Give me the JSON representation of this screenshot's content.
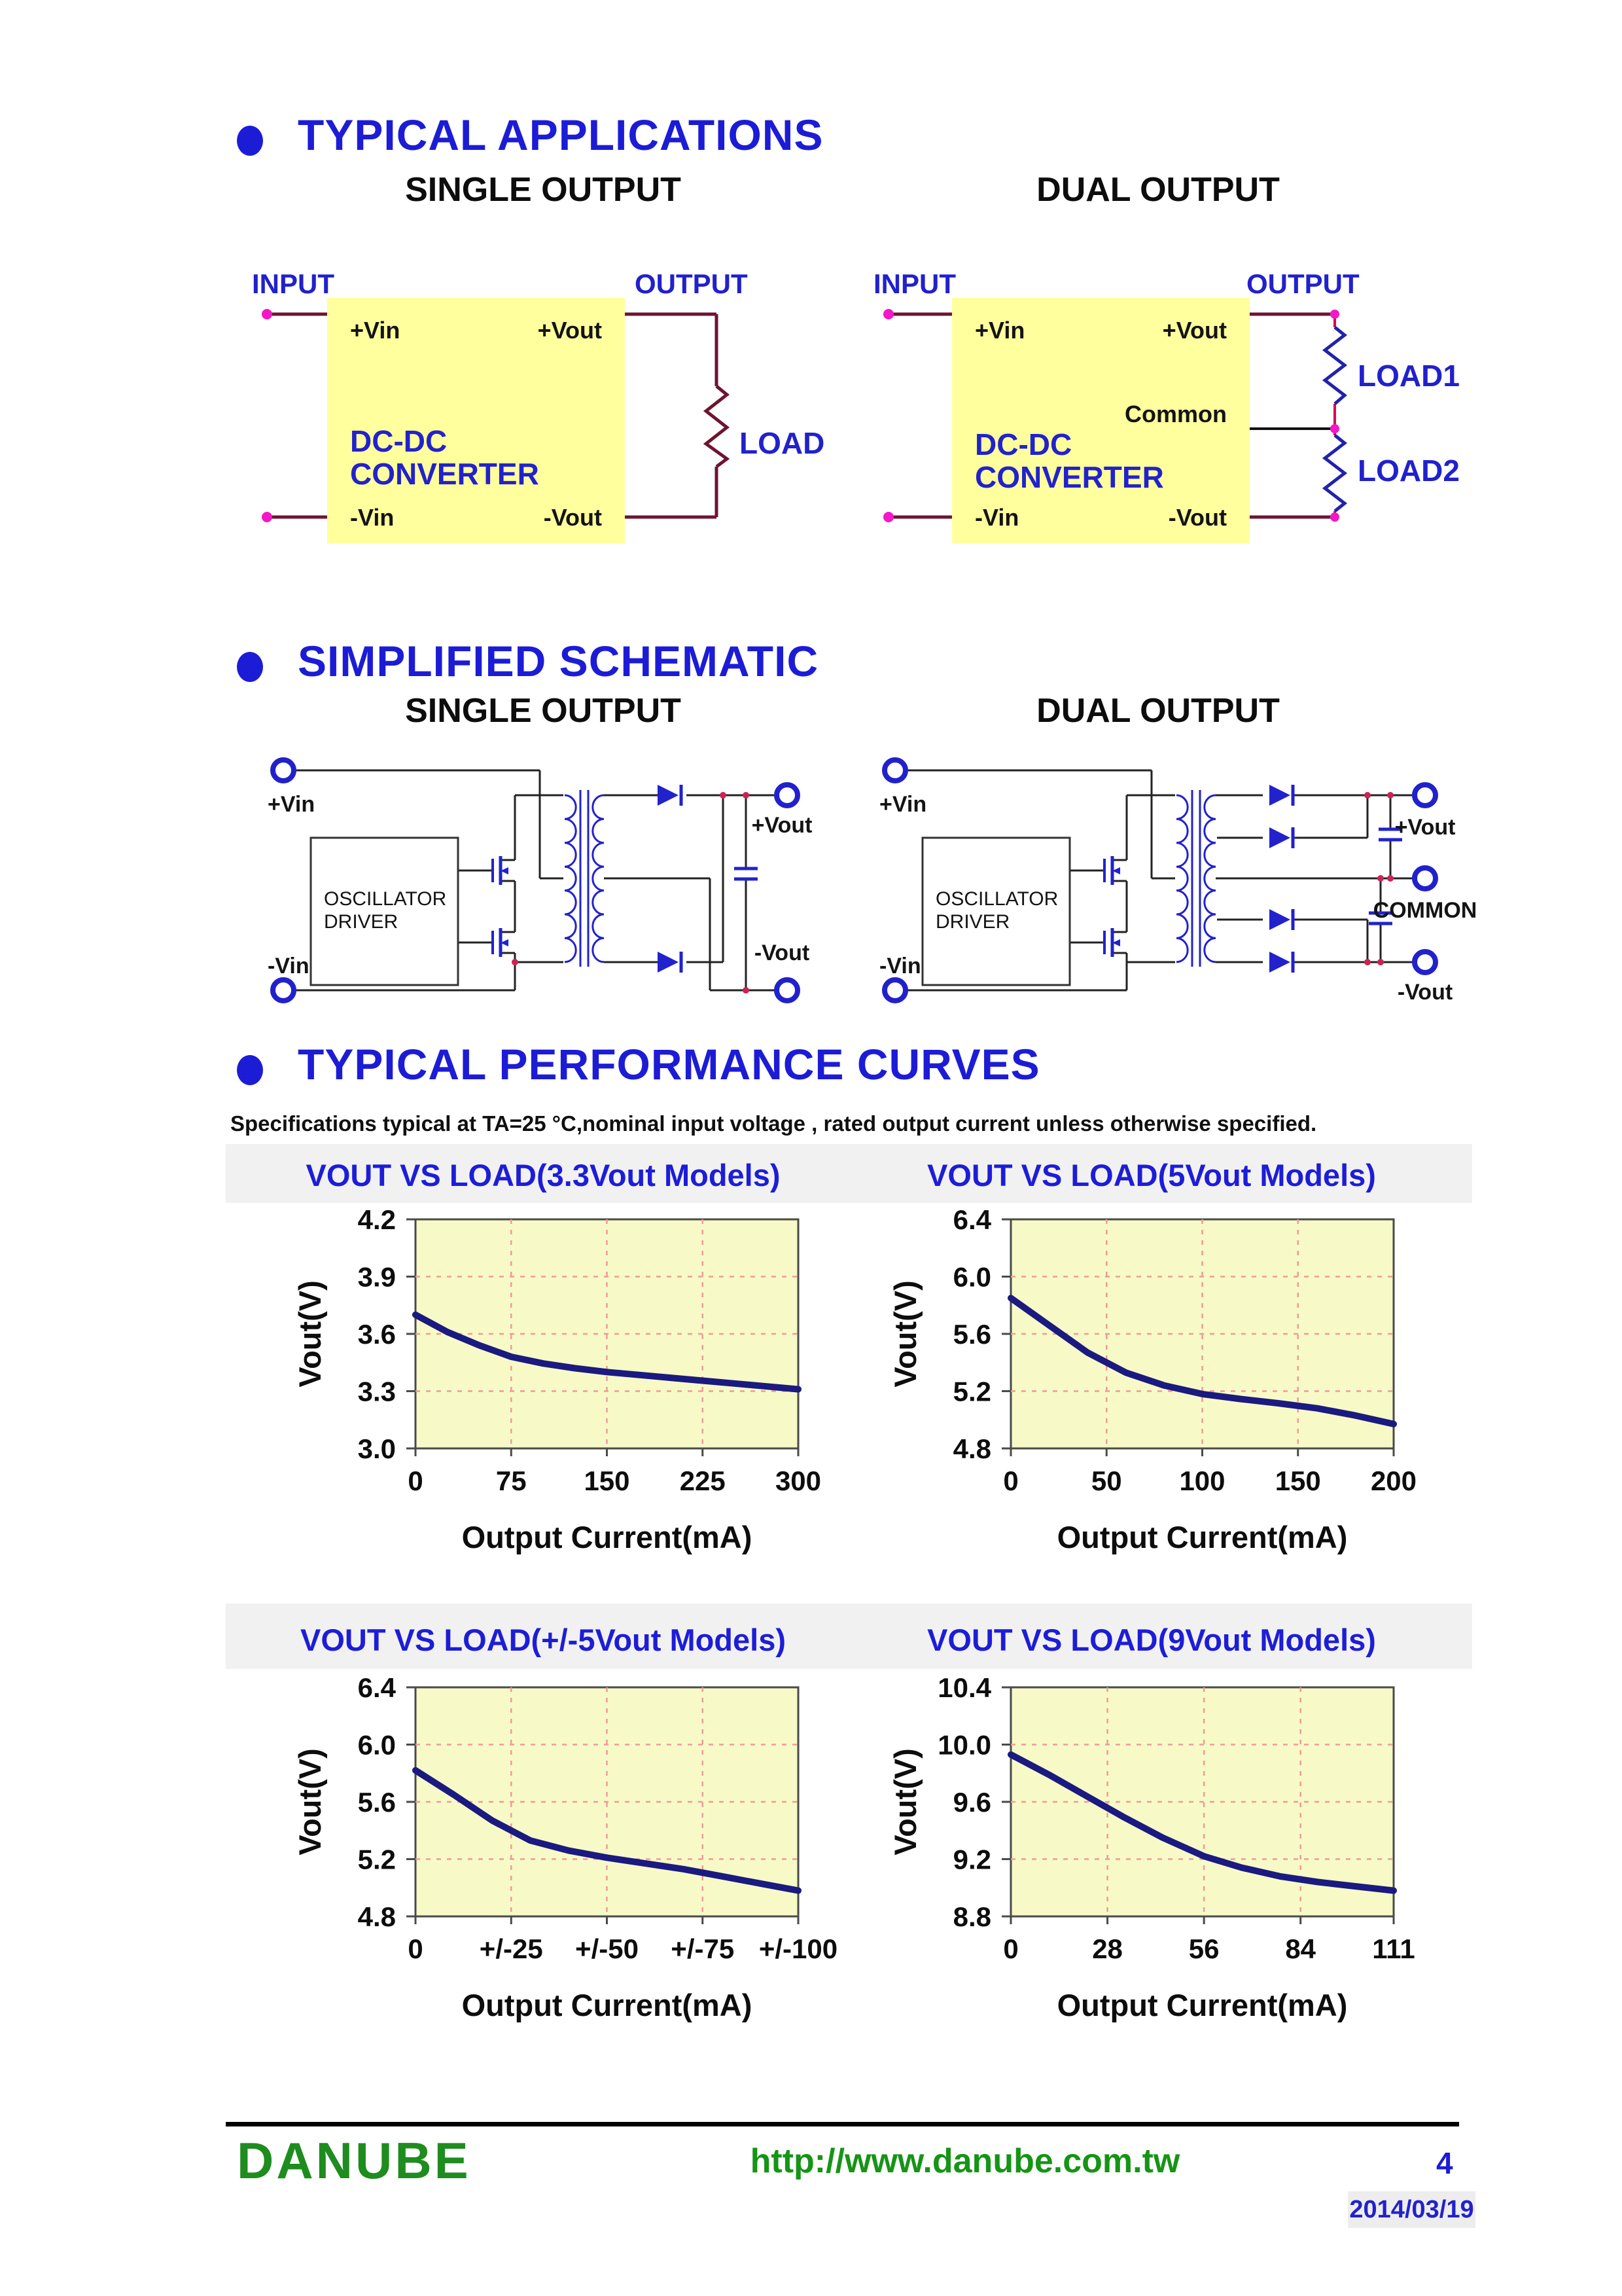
{
  "colors": {
    "heading_blue": "#1c1cd6",
    "label_blue": "#2121cc",
    "text_black": "#111111",
    "converter_box_yellow": "#ffff9e",
    "wire_dark_red": "#6e1430",
    "load_rail_red": "#d01050",
    "magenta_dot": "#f218c8",
    "component_blue": "#2222cc",
    "brand_green": "#1e8c1e",
    "url_green": "#169416",
    "date_blue": "#2222cc",
    "band_gray": "#f1f1f1"
  },
  "chart_style": {
    "plot_bg": "#f7fac6",
    "grid": "#ef9a9a",
    "frame": "#4a4a4a",
    "line": "#1a1a80"
  },
  "sections": {
    "applications": {
      "title": "TYPICAL APPLICATIONS",
      "single": {
        "heading": "SINGLE OUTPUT",
        "input_label": "INPUT",
        "output_label": "OUTPUT",
        "box_line1": "DC-DC",
        "box_line2": "CONVERTER",
        "pins": {
          "vin_pos": "+Vin",
          "vout_pos": "+Vout",
          "vin_neg": "-Vin",
          "vout_neg": "-Vout"
        },
        "load": "LOAD"
      },
      "dual": {
        "heading": "DUAL OUTPUT",
        "input_label": "INPUT",
        "output_label": "OUTPUT",
        "box_line1": "DC-DC",
        "box_line2": "CONVERTER",
        "pins": {
          "vin_pos": "+Vin",
          "vout_pos": "+Vout",
          "common": "Common",
          "vin_neg": "-Vin",
          "vout_neg": "-Vout"
        },
        "load1": "LOAD1",
        "load2": "LOAD2"
      }
    },
    "schematic": {
      "title": "SIMPLIFIED SCHEMATIC",
      "single": {
        "heading": "SINGLE OUTPUT",
        "osc_line1": "OSCILLATOR",
        "osc_line2": "DRIVER",
        "vin_pos": "+Vin",
        "vin_neg": "-Vin",
        "vout_pos": "+Vout",
        "vout_neg": "-Vout"
      },
      "dual": {
        "heading": "DUAL OUTPUT",
        "osc_line1": "OSCILLATOR",
        "osc_line2": "DRIVER",
        "vin_pos": "+Vin",
        "vin_neg": "-Vin",
        "vout_pos": "+Vout",
        "common": "COMMON",
        "vout_neg": "-Vout"
      }
    },
    "curves": {
      "title": "TYPICAL PERFORMANCE CURVES",
      "spec_note": "Specifications typical at TA=25 °C,nominal input voltage , rated output current unless otherwise specified."
    }
  },
  "chart_data": [
    {
      "type": "line",
      "title": "VOUT VS LOAD(3.3Vout Models)",
      "xlabel": "Output Current(mA)",
      "ylabel": "Vout(V)",
      "xlim": [
        0,
        300
      ],
      "ylim": [
        3.0,
        4.2
      ],
      "xticks": [
        0,
        75,
        150,
        225,
        300
      ],
      "xtick_labels": [
        "0",
        "75",
        "150",
        "225",
        "300"
      ],
      "yticks": [
        3.0,
        3.3,
        3.6,
        3.9,
        4.2
      ],
      "ytick_labels": [
        "3.0",
        "3.3",
        "3.6",
        "3.9",
        "4.2"
      ],
      "grid": "dashed",
      "legend": "none",
      "x": [
        0,
        25,
        50,
        75,
        100,
        125,
        150,
        175,
        200,
        225,
        250,
        275,
        300
      ],
      "y": [
        3.7,
        3.61,
        3.54,
        3.48,
        3.445,
        3.42,
        3.4,
        3.385,
        3.37,
        3.355,
        3.34,
        3.325,
        3.31
      ]
    },
    {
      "type": "line",
      "title": "VOUT VS LOAD(5Vout Models)",
      "xlabel": "Output Current(mA)",
      "ylabel": "Vout(V)",
      "xlim": [
        0,
        200
      ],
      "ylim": [
        4.8,
        6.4
      ],
      "xticks": [
        0,
        50,
        100,
        150,
        200
      ],
      "xtick_labels": [
        "0",
        "50",
        "100",
        "150",
        "200"
      ],
      "yticks": [
        4.8,
        5.2,
        5.6,
        6.0,
        6.4
      ],
      "ytick_labels": [
        "4.8",
        "5.2",
        "5.6",
        "6.0",
        "6.4"
      ],
      "grid": "dashed",
      "legend": "none",
      "x": [
        0,
        20,
        40,
        60,
        80,
        100,
        120,
        140,
        160,
        180,
        200
      ],
      "y": [
        5.85,
        5.66,
        5.47,
        5.33,
        5.24,
        5.18,
        5.145,
        5.115,
        5.08,
        5.03,
        4.97
      ]
    },
    {
      "type": "line",
      "title": "VOUT VS LOAD(+/-5Vout Models)",
      "xlabel": "Output Current(mA)",
      "ylabel": "Vout(V)",
      "xlim": [
        0,
        100
      ],
      "ylim": [
        4.8,
        6.4
      ],
      "xticks": [
        0,
        25,
        50,
        75,
        100
      ],
      "xtick_labels": [
        "0",
        "+/-25",
        "+/-50",
        "+/-75",
        "+/-100"
      ],
      "yticks": [
        4.8,
        5.2,
        5.6,
        6.0,
        6.4
      ],
      "ytick_labels": [
        "4.8",
        "5.2",
        "5.6",
        "6.0",
        "6.4"
      ],
      "grid": "dashed",
      "legend": "none",
      "x": [
        0,
        10,
        20,
        30,
        40,
        50,
        60,
        70,
        80,
        90,
        100
      ],
      "y": [
        5.82,
        5.65,
        5.47,
        5.33,
        5.26,
        5.21,
        5.17,
        5.13,
        5.08,
        5.03,
        4.98
      ]
    },
    {
      "type": "line",
      "title": "VOUT VS LOAD(9Vout Models)",
      "xlabel": "Output Current(mA)",
      "ylabel": "Vout(V)",
      "xlim": [
        0,
        111
      ],
      "ylim": [
        8.8,
        10.4
      ],
      "xticks": [
        0,
        28,
        56,
        84,
        111
      ],
      "xtick_labels": [
        "0",
        "28",
        "56",
        "84",
        "111"
      ],
      "yticks": [
        8.8,
        9.2,
        9.6,
        10.0,
        10.4
      ],
      "ytick_labels": [
        "8.8",
        "9.2",
        "9.6",
        "10.0",
        "10.4"
      ],
      "grid": "dashed",
      "legend": "none",
      "x": [
        0,
        11,
        22,
        33,
        44,
        56,
        67,
        78,
        89,
        100,
        111
      ],
      "y": [
        9.93,
        9.79,
        9.64,
        9.49,
        9.35,
        9.22,
        9.14,
        9.08,
        9.04,
        9.01,
        8.98
      ]
    }
  ],
  "footer": {
    "brand": "DANUBE",
    "url": "http://www.danube.com.tw",
    "page_number": "4",
    "date": "2014/03/19"
  }
}
